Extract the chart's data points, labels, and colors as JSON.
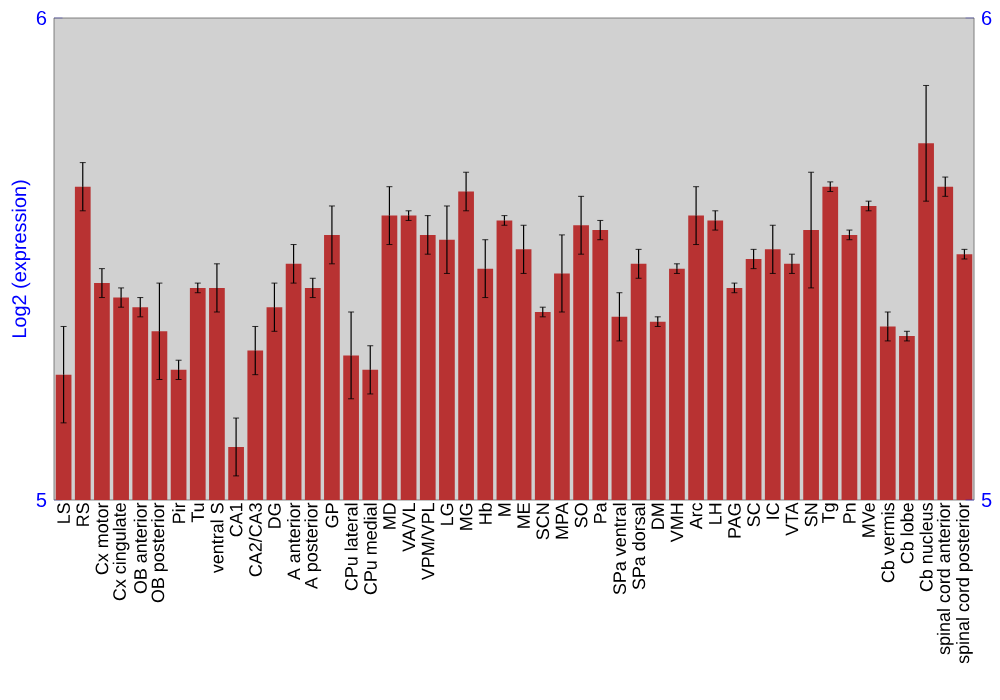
{
  "chart_data": {
    "type": "bar",
    "ylabel": "Log2 (expression)",
    "categories": [
      "LS",
      "RS",
      "Cx motor",
      "Cx cingulate",
      "OB anterior",
      "OB posterior",
      "Pir",
      "Tu",
      "ventral S",
      "CA1",
      "CA2/CA3",
      "DG",
      "A anterior",
      "A posterior",
      "GP",
      "CPu lateral",
      "CPu medial",
      "MD",
      "VA/VL",
      "VPM/VPL",
      "LG",
      "MG",
      "Hb",
      "M",
      "ME",
      "SCN",
      "MPA",
      "SO",
      "Pa",
      "SPa ventral",
      "SPa dorsal",
      "DM",
      "VMH",
      "Arc",
      "LH",
      "PAG",
      "SC",
      "IC",
      "VTA",
      "SN",
      "Tg",
      "Pn",
      "MVe",
      "Cb vermis",
      "Cb lobe",
      "Cb nucleus",
      "spinal cord anterior",
      "spinal cord posterior"
    ],
    "values": [
      5.26,
      5.65,
      5.45,
      5.42,
      5.4,
      5.35,
      5.27,
      5.44,
      5.44,
      5.11,
      5.31,
      5.4,
      5.49,
      5.44,
      5.55,
      5.3,
      5.27,
      5.59,
      5.59,
      5.55,
      5.54,
      5.64,
      5.48,
      5.58,
      5.52,
      5.39,
      5.47,
      5.57,
      5.56,
      5.38,
      5.49,
      5.37,
      5.48,
      5.59,
      5.58,
      5.44,
      5.5,
      5.52,
      5.49,
      5.56,
      5.65,
      5.55,
      5.61,
      5.36,
      5.34,
      5.74,
      5.65,
      5.51
    ],
    "errors": [
      0.1,
      0.05,
      0.03,
      0.02,
      0.02,
      0.1,
      0.02,
      0.01,
      0.05,
      0.06,
      0.05,
      0.05,
      0.04,
      0.02,
      0.06,
      0.09,
      0.05,
      0.06,
      0.01,
      0.04,
      0.07,
      0.04,
      0.06,
      0.01,
      0.05,
      0.01,
      0.08,
      0.06,
      0.02,
      0.05,
      0.03,
      0.01,
      0.01,
      0.06,
      0.02,
      0.01,
      0.02,
      0.05,
      0.02,
      0.12,
      0.01,
      0.01,
      0.01,
      0.03,
      0.01,
      0.12,
      0.02,
      0.01
    ],
    "color": "#b83232",
    "ylim": [
      5,
      6
    ],
    "yticks": [
      5,
      6
    ],
    "y2lim": [
      5,
      6
    ],
    "y2ticks": [
      5,
      6
    ]
  }
}
